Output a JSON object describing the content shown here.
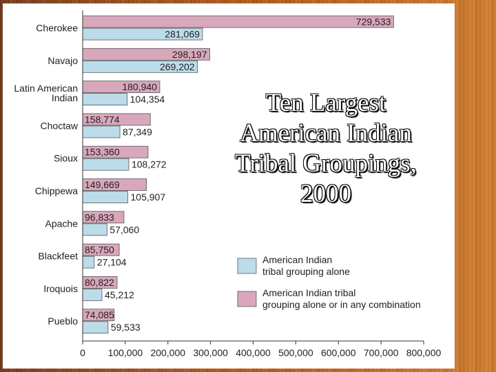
{
  "colors": {
    "alone": "#bcdcea",
    "combo": "#d9a7bc",
    "stroke": "#555555"
  },
  "title_lines": [
    "Ten Largest",
    "American Indian",
    "Tribal Groupings,",
    "2000"
  ],
  "legend": {
    "alone": [
      "American Indian",
      "tribal grouping alone"
    ],
    "combo": [
      "American Indian tribal",
      "grouping alone or in any combination"
    ]
  },
  "chart_data": {
    "type": "bar",
    "orientation": "horizontal",
    "title": "Ten Largest American Indian Tribal Groupings, 2000",
    "categories": [
      [
        "Cherokee"
      ],
      [
        "Navajo"
      ],
      [
        "Latin American",
        "Indian"
      ],
      [
        "Choctaw"
      ],
      [
        "Sioux"
      ],
      [
        "Chippewa"
      ],
      [
        "Apache"
      ],
      [
        "Blackfeet"
      ],
      [
        "Iroquois"
      ],
      [
        "Pueblo"
      ]
    ],
    "series": [
      {
        "name": "American Indian tribal grouping alone",
        "values": [
          281069,
          269202,
          104354,
          87349,
          108272,
          105907,
          57060,
          27104,
          45212,
          59533
        ],
        "labels": [
          "281,069",
          "269,202",
          "104,354",
          "87,349",
          "108,272",
          "105,907",
          "57,060",
          "27,104",
          "45,212",
          "59,533"
        ]
      },
      {
        "name": "American Indian tribal grouping alone or in any combination",
        "values": [
          729533,
          298197,
          180940,
          158774,
          153360,
          149669,
          96833,
          85750,
          80822,
          74085
        ],
        "labels": [
          "729,533",
          "298,197",
          "180,940",
          "158,774",
          "153,360",
          "149,669",
          "96,833",
          "85,750",
          "80,822",
          "74,085"
        ]
      }
    ],
    "xlim": [
      0,
      800000
    ],
    "xticks": [
      0,
      100000,
      200000,
      300000,
      400000,
      500000,
      600000,
      700000,
      800000
    ],
    "xtick_labels": [
      "0",
      "100,000",
      "200,000",
      "300,000",
      "400,000",
      "500,000",
      "600,000",
      "700,000",
      "800,000"
    ],
    "legend_position": "lower-right",
    "grid": false
  }
}
